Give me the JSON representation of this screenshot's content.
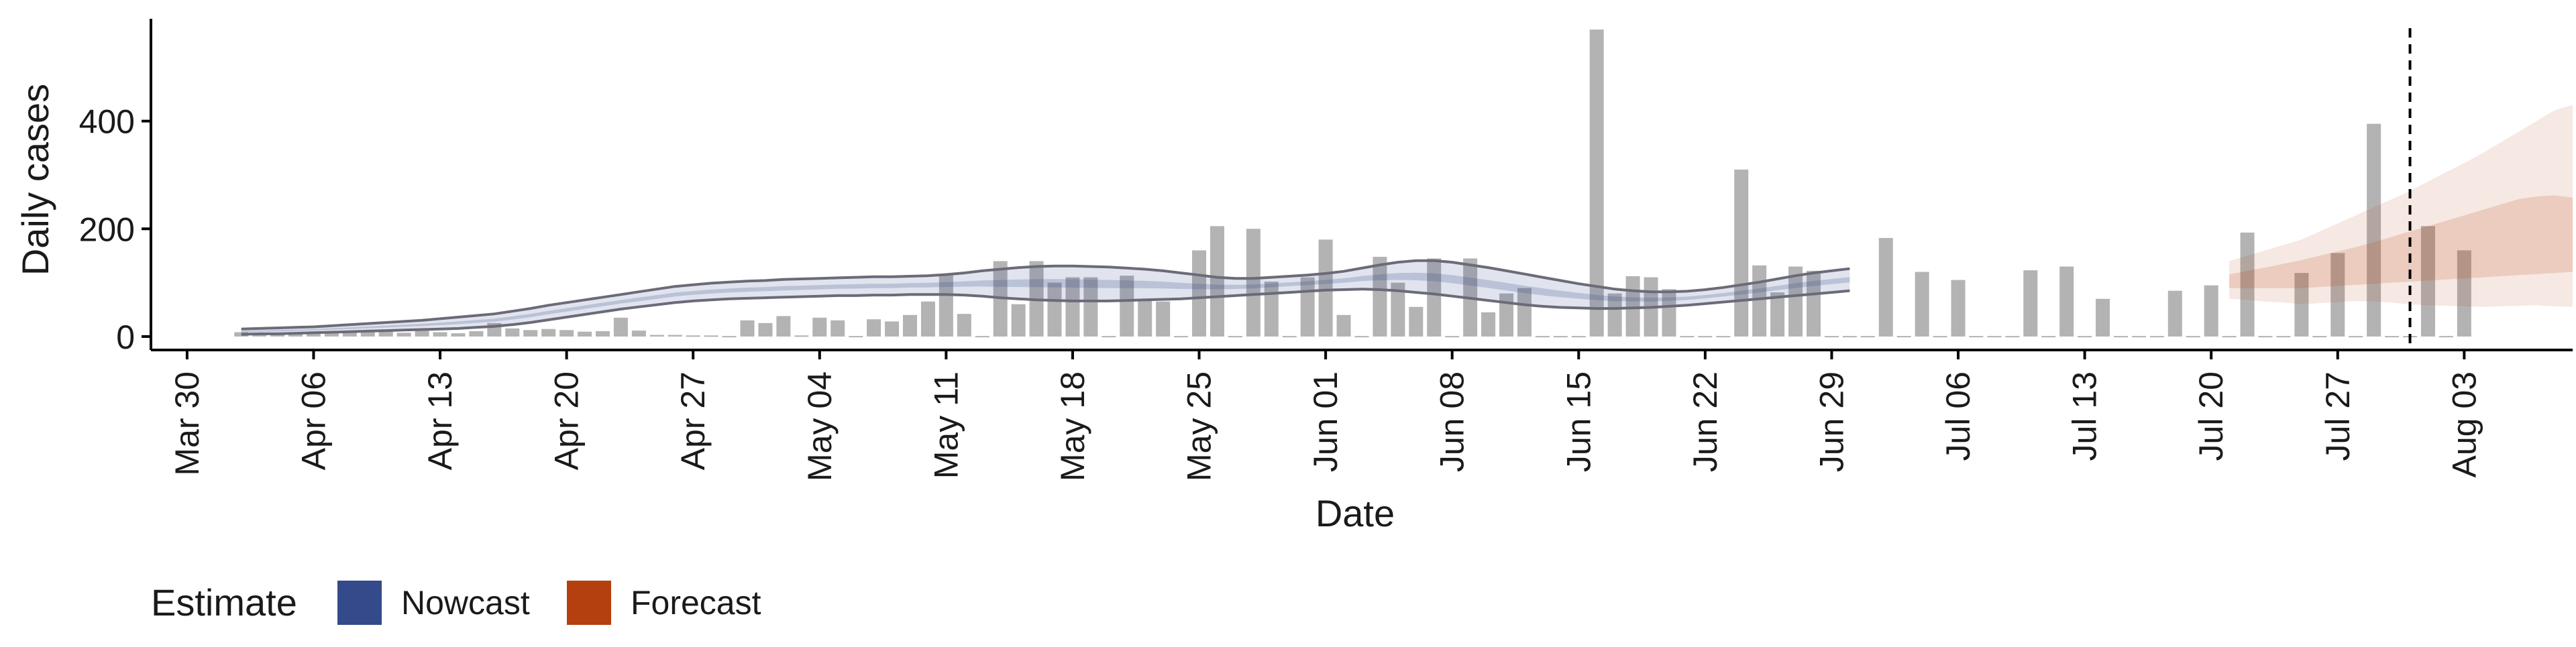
{
  "chart_data": {
    "type": "bar",
    "xlabel": "Date",
    "ylabel": "Daily cases",
    "ylim": [
      -25,
      590
    ],
    "y_ticks": [
      0,
      200,
      400
    ],
    "x_ticks": [
      "Mar 30",
      "Apr 06",
      "Apr 13",
      "Apr 20",
      "Apr 27",
      "May 04",
      "May 11",
      "May 18",
      "May 25",
      "Jun 01",
      "Jun 08",
      "Jun 15",
      "Jun 22",
      "Jun 29",
      "Jul 06",
      "Jul 13",
      "Jul 20",
      "Jul 27",
      "Aug 03"
    ],
    "x_range": [
      "2020-03-28",
      "2020-08-09"
    ],
    "grid": false,
    "legend": {
      "title": "Estimate",
      "placement": "bottom-left",
      "entries": [
        {
          "name": "Nowcast",
          "color": "#344A8A"
        },
        {
          "name": "Forecast",
          "color": "#B5400F"
        }
      ]
    },
    "vline_date": "2020-07-31",
    "bar_color": "#b3b3b3",
    "bars": {
      "start": "2020-04-02",
      "values": [
        8,
        5,
        4,
        6,
        7,
        9,
        8,
        10,
        9,
        7,
        11,
        8,
        6,
        10,
        25,
        15,
        12,
        14,
        12,
        9,
        10,
        35,
        11,
        3,
        3,
        2,
        2,
        1,
        30,
        25,
        38,
        2,
        35,
        30,
        1,
        32,
        28,
        40,
        65,
        115,
        42,
        1,
        140,
        60,
        140,
        100,
        110,
        110,
        1,
        113,
        70,
        65,
        1,
        160,
        205,
        1,
        200,
        102,
        1,
        110,
        180,
        40,
        1,
        148,
        100,
        55,
        145,
        1,
        145,
        45,
        80,
        90,
        1,
        1,
        1,
        570,
        80,
        112,
        110,
        88,
        1,
        1,
        1,
        310,
        132,
        82,
        130,
        122,
        1,
        1,
        1,
        183,
        1,
        120,
        1,
        105,
        1,
        1,
        1,
        123,
        1,
        130,
        1,
        70,
        1,
        1,
        1,
        85,
        1,
        95,
        1,
        193,
        1,
        1,
        118,
        1,
        155,
        1,
        395,
        1,
        1,
        205,
        1,
        160
      ]
    },
    "nowcast_band": {
      "start": "2020-04-02",
      "upper": [
        14,
        15,
        16,
        17,
        18,
        20,
        22,
        24,
        26,
        28,
        30,
        33,
        36,
        39,
        42,
        47,
        52,
        58,
        63,
        68,
        73,
        78,
        83,
        88,
        93,
        96,
        99,
        101,
        103,
        104,
        106,
        107,
        108,
        109,
        110,
        111,
        111,
        112,
        113,
        115,
        118,
        122,
        125,
        128,
        130,
        131,
        131,
        130,
        129,
        127,
        125,
        122,
        118,
        114,
        110,
        108,
        108,
        110,
        112,
        114,
        117,
        121,
        127,
        133,
        138,
        141,
        141,
        138,
        133,
        128,
        122,
        116,
        110,
        104,
        98,
        93,
        88,
        85,
        83,
        83,
        84,
        87,
        91,
        96,
        101,
        107,
        113,
        118,
        122,
        126
      ],
      "lower": [
        4,
        5,
        5,
        6,
        7,
        8,
        9,
        10,
        11,
        12,
        13,
        14,
        15,
        17,
        19,
        22,
        26,
        31,
        36,
        41,
        46,
        51,
        55,
        59,
        63,
        66,
        68,
        70,
        71,
        72,
        73,
        74,
        75,
        76,
        76,
        77,
        77,
        78,
        78,
        78,
        77,
        75,
        72,
        70,
        68,
        67,
        66,
        66,
        66,
        67,
        68,
        69,
        70,
        72,
        74,
        76,
        78,
        80,
        82,
        84,
        86,
        87,
        88,
        87,
        85,
        82,
        79,
        75,
        71,
        67,
        63,
        59,
        56,
        54,
        53,
        52,
        52,
        53,
        54,
        56,
        58,
        61,
        64,
        67,
        70,
        73,
        76,
        79,
        82,
        85
      ]
    },
    "forecast_bands": {
      "start": "2020-07-21",
      "outer_upper": [
        140,
        150,
        160,
        170,
        180,
        195,
        210,
        225,
        240,
        255,
        270,
        288,
        305,
        322,
        340,
        360,
        380,
        400,
        420,
        430
      ],
      "outer_lower": [
        70,
        68,
        65,
        63,
        60,
        62,
        64,
        66,
        65,
        63,
        60,
        58,
        57,
        56,
        55,
        56,
        57,
        58,
        56,
        55
      ],
      "inner_upper": [
        115,
        122,
        128,
        135,
        142,
        150,
        158,
        166,
        175,
        185,
        195,
        205,
        215,
        225,
        235,
        245,
        255,
        260,
        262,
        258
      ],
      "inner_lower": [
        90,
        90,
        90,
        90,
        90,
        92,
        94,
        96,
        98,
        100,
        102,
        104,
        106,
        108,
        110,
        112,
        114,
        116,
        118,
        120
      ]
    }
  }
}
